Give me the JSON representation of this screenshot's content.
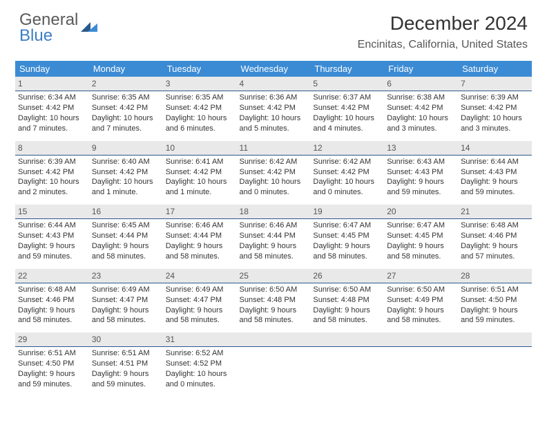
{
  "brand": {
    "line1": "General",
    "line2": "Blue"
  },
  "title": "December 2024",
  "location": "Encinitas, California, United States",
  "colors": {
    "header_bg": "#3b8bd4",
    "daynum_bg": "#e9e9e9",
    "daynum_border": "#2a5a8a",
    "brand_gray": "#5a5a5a",
    "brand_blue": "#3b7fc4"
  },
  "dow": [
    "Sunday",
    "Monday",
    "Tuesday",
    "Wednesday",
    "Thursday",
    "Friday",
    "Saturday"
  ],
  "weeks": [
    [
      {
        "n": "1",
        "sr": "6:34 AM",
        "ss": "4:42 PM",
        "dl": "10 hours and 7 minutes."
      },
      {
        "n": "2",
        "sr": "6:35 AM",
        "ss": "4:42 PM",
        "dl": "10 hours and 7 minutes."
      },
      {
        "n": "3",
        "sr": "6:35 AM",
        "ss": "4:42 PM",
        "dl": "10 hours and 6 minutes."
      },
      {
        "n": "4",
        "sr": "6:36 AM",
        "ss": "4:42 PM",
        "dl": "10 hours and 5 minutes."
      },
      {
        "n": "5",
        "sr": "6:37 AM",
        "ss": "4:42 PM",
        "dl": "10 hours and 4 minutes."
      },
      {
        "n": "6",
        "sr": "6:38 AM",
        "ss": "4:42 PM",
        "dl": "10 hours and 3 minutes."
      },
      {
        "n": "7",
        "sr": "6:39 AM",
        "ss": "4:42 PM",
        "dl": "10 hours and 3 minutes."
      }
    ],
    [
      {
        "n": "8",
        "sr": "6:39 AM",
        "ss": "4:42 PM",
        "dl": "10 hours and 2 minutes."
      },
      {
        "n": "9",
        "sr": "6:40 AM",
        "ss": "4:42 PM",
        "dl": "10 hours and 1 minute."
      },
      {
        "n": "10",
        "sr": "6:41 AM",
        "ss": "4:42 PM",
        "dl": "10 hours and 1 minute."
      },
      {
        "n": "11",
        "sr": "6:42 AM",
        "ss": "4:42 PM",
        "dl": "10 hours and 0 minutes."
      },
      {
        "n": "12",
        "sr": "6:42 AM",
        "ss": "4:42 PM",
        "dl": "10 hours and 0 minutes."
      },
      {
        "n": "13",
        "sr": "6:43 AM",
        "ss": "4:43 PM",
        "dl": "9 hours and 59 minutes."
      },
      {
        "n": "14",
        "sr": "6:44 AM",
        "ss": "4:43 PM",
        "dl": "9 hours and 59 minutes."
      }
    ],
    [
      {
        "n": "15",
        "sr": "6:44 AM",
        "ss": "4:43 PM",
        "dl": "9 hours and 59 minutes."
      },
      {
        "n": "16",
        "sr": "6:45 AM",
        "ss": "4:44 PM",
        "dl": "9 hours and 58 minutes."
      },
      {
        "n": "17",
        "sr": "6:46 AM",
        "ss": "4:44 PM",
        "dl": "9 hours and 58 minutes."
      },
      {
        "n": "18",
        "sr": "6:46 AM",
        "ss": "4:44 PM",
        "dl": "9 hours and 58 minutes."
      },
      {
        "n": "19",
        "sr": "6:47 AM",
        "ss": "4:45 PM",
        "dl": "9 hours and 58 minutes."
      },
      {
        "n": "20",
        "sr": "6:47 AM",
        "ss": "4:45 PM",
        "dl": "9 hours and 58 minutes."
      },
      {
        "n": "21",
        "sr": "6:48 AM",
        "ss": "4:46 PM",
        "dl": "9 hours and 57 minutes."
      }
    ],
    [
      {
        "n": "22",
        "sr": "6:48 AM",
        "ss": "4:46 PM",
        "dl": "9 hours and 58 minutes."
      },
      {
        "n": "23",
        "sr": "6:49 AM",
        "ss": "4:47 PM",
        "dl": "9 hours and 58 minutes."
      },
      {
        "n": "24",
        "sr": "6:49 AM",
        "ss": "4:47 PM",
        "dl": "9 hours and 58 minutes."
      },
      {
        "n": "25",
        "sr": "6:50 AM",
        "ss": "4:48 PM",
        "dl": "9 hours and 58 minutes."
      },
      {
        "n": "26",
        "sr": "6:50 AM",
        "ss": "4:48 PM",
        "dl": "9 hours and 58 minutes."
      },
      {
        "n": "27",
        "sr": "6:50 AM",
        "ss": "4:49 PM",
        "dl": "9 hours and 58 minutes."
      },
      {
        "n": "28",
        "sr": "6:51 AM",
        "ss": "4:50 PM",
        "dl": "9 hours and 59 minutes."
      }
    ],
    [
      {
        "n": "29",
        "sr": "6:51 AM",
        "ss": "4:50 PM",
        "dl": "9 hours and 59 minutes."
      },
      {
        "n": "30",
        "sr": "6:51 AM",
        "ss": "4:51 PM",
        "dl": "9 hours and 59 minutes."
      },
      {
        "n": "31",
        "sr": "6:52 AM",
        "ss": "4:52 PM",
        "dl": "10 hours and 0 minutes."
      },
      null,
      null,
      null,
      null
    ]
  ],
  "labels": {
    "sunrise": "Sunrise:",
    "sunset": "Sunset:",
    "daylight": "Daylight:"
  }
}
